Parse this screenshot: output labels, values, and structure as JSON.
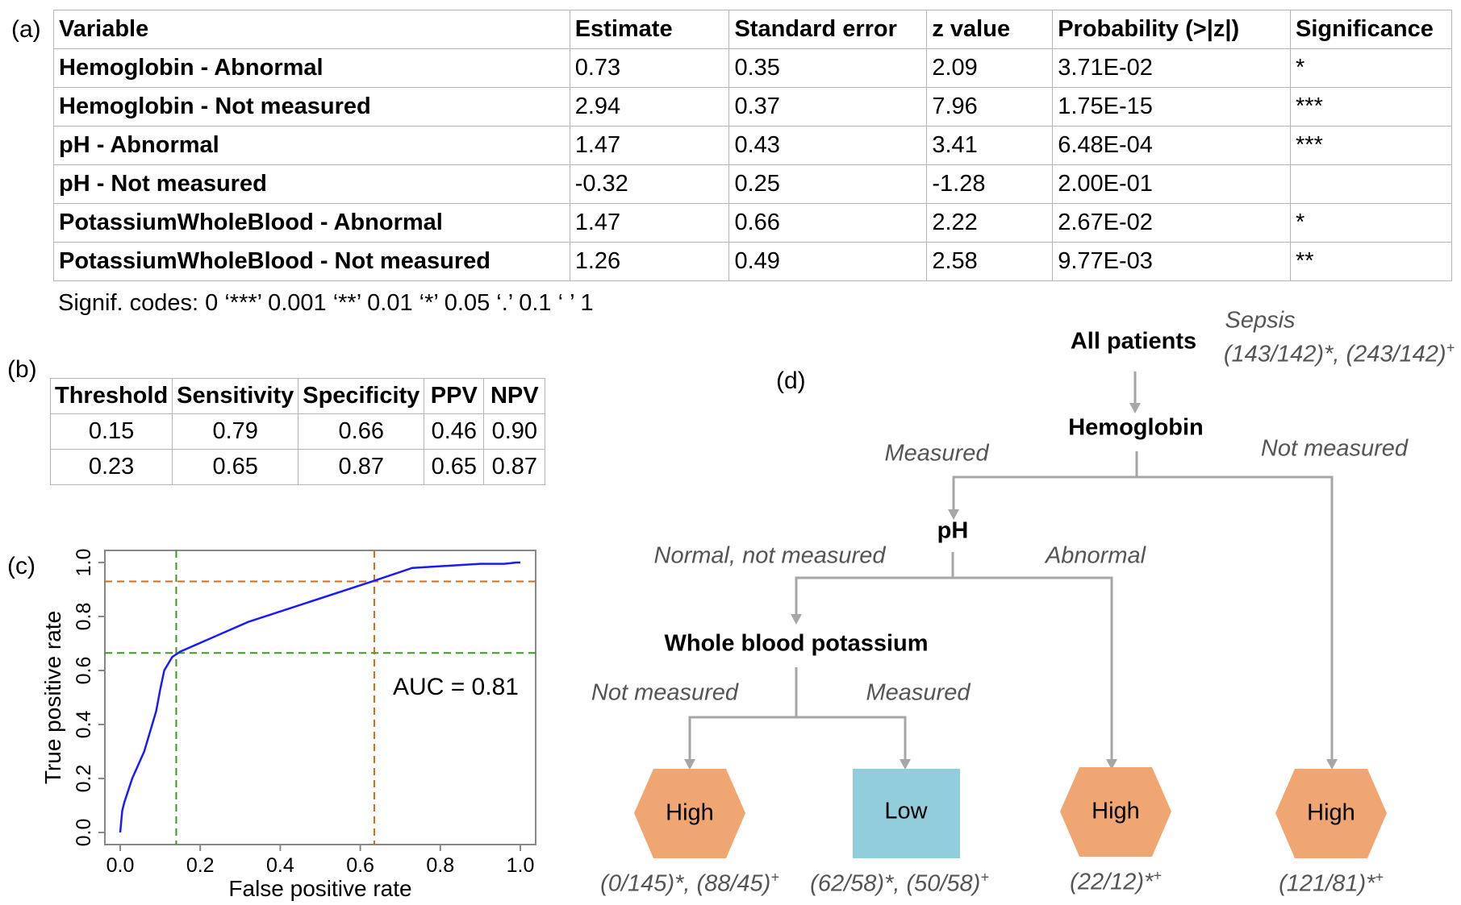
{
  "panel_a": {
    "label": "(a)",
    "columns": [
      "Variable",
      "Estimate",
      "Standard error",
      "z value",
      "Probability (>|z|)",
      "Significance"
    ],
    "rows": [
      [
        "Hemoglobin - Abnormal",
        "0.73",
        "0.35",
        "2.09",
        "3.71E-02",
        "*"
      ],
      [
        "Hemoglobin - Not measured",
        "2.94",
        "0.37",
        "7.96",
        "1.75E-15",
        "***"
      ],
      [
        "pH - Abnormal",
        "1.47",
        "0.43",
        "3.41",
        "6.48E-04",
        "***"
      ],
      [
        "pH - Not measured",
        "-0.32",
        "0.25",
        "-1.28",
        "2.00E-01",
        ""
      ],
      [
        "PotassiumWholeBlood - Abnormal",
        "1.47",
        "0.66",
        "2.22",
        "2.67E-02",
        "*"
      ],
      [
        "PotassiumWholeBlood - Not measured",
        "1.26",
        "0.49",
        "2.58",
        "9.77E-03",
        "**"
      ]
    ],
    "signif_codes": "Signif. codes:  0 ‘***’ 0.001 ‘**’ 0.01 ‘*’ 0.05 ‘.’ 0.1 ‘ ’ 1"
  },
  "panel_b": {
    "label": "(b)",
    "columns": [
      "Threshold",
      "Sensitivity",
      "Specificity",
      "PPV",
      "NPV"
    ],
    "rows": [
      [
        "0.15",
        "0.79",
        "0.66",
        "0.46",
        "0.90"
      ],
      [
        "0.23",
        "0.65",
        "0.87",
        "0.65",
        "0.87"
      ]
    ]
  },
  "chart_data": {
    "label": "(c)",
    "type": "line",
    "xlabel": "False positive rate",
    "ylabel": "True positive rate",
    "xlim": [
      0,
      1
    ],
    "ylim": [
      0,
      1
    ],
    "xticks": [
      "0.0",
      "0.2",
      "0.4",
      "0.6",
      "0.8",
      "1.0"
    ],
    "yticks": [
      "0.0",
      "0.2",
      "0.4",
      "0.6",
      "0.8",
      "1.0"
    ],
    "annotation": "AUC = 0.81",
    "series": [
      {
        "color": "#1a1aff",
        "x": [
          0.0,
          0.005,
          0.01,
          0.03,
          0.06,
          0.09,
          0.1,
          0.11,
          0.13,
          0.15,
          0.32,
          0.63,
          0.73,
          0.9,
          0.96,
          0.99,
          1.0
        ],
        "y": [
          0.0,
          0.08,
          0.11,
          0.2,
          0.3,
          0.45,
          0.53,
          0.6,
          0.65,
          0.67,
          0.78,
          0.93,
          0.98,
          0.995,
          0.995,
          1.0,
          1.0
        ]
      }
    ],
    "reference_lines": [
      {
        "color": "#3a9a1a",
        "x": 0.14,
        "y": 0.665
      },
      {
        "color": "#d96a10",
        "x": 0.635,
        "y": 0.93
      }
    ],
    "grid": false
  },
  "panel_d": {
    "label": "(d)",
    "root": "All patients",
    "root_note_title": "Sepsis",
    "root_note_counts": "(143/142)*, (243/142)",
    "root_note_sup": "+",
    "node_hemoglobin": "Hemoglobin",
    "edge_hb_measured": "Measured",
    "edge_hb_not_measured": "Not measured",
    "node_ph": "pH",
    "edge_ph_normal": "Normal, not measured",
    "edge_ph_abnormal": "Abnormal",
    "node_potassium": "Whole blood potassium",
    "edge_k_not_measured": "Not measured",
    "edge_k_measured": "Measured",
    "leaves": [
      {
        "label": "High",
        "shape": "hexagon",
        "color": "#f0a672",
        "counts": "(0/145)*, (88/45)",
        "sup": "+"
      },
      {
        "label": "Low",
        "shape": "rectangle",
        "color": "#92cddc",
        "counts": "(62/58)*, (50/58)",
        "sup": "+"
      },
      {
        "label": "High",
        "shape": "hexagon",
        "color": "#f0a672",
        "counts": "(22/12)*",
        "sup": "+"
      },
      {
        "label": "High",
        "shape": "hexagon",
        "color": "#f0a672",
        "counts": "(121/81)*",
        "sup": "+"
      }
    ]
  }
}
